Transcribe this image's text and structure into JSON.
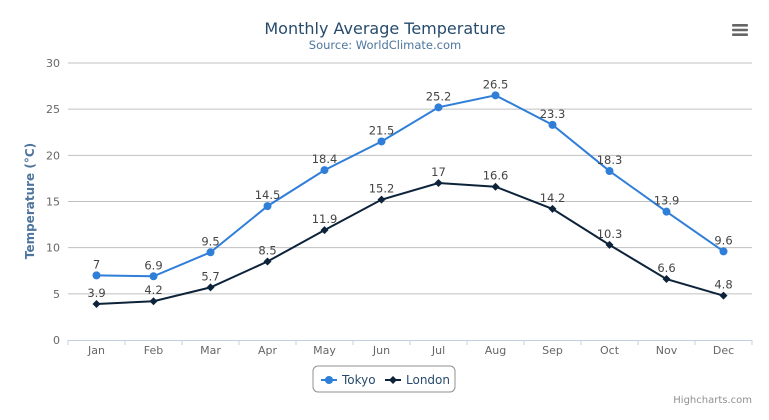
{
  "chart_data": {
    "type": "line",
    "title": "Monthly Average Temperature",
    "subtitle": "Source: WorldClimate.com",
    "ylabel": "Temperature (°C)",
    "xlabel": "",
    "categories": [
      "Jan",
      "Feb",
      "Mar",
      "Apr",
      "May",
      "Jun",
      "Jul",
      "Aug",
      "Sep",
      "Oct",
      "Nov",
      "Dec"
    ],
    "ylim": [
      0,
      30
    ],
    "yticks": [
      0,
      5,
      10,
      15,
      20,
      25,
      30
    ],
    "grid": true,
    "legend_placement": "bottom-center",
    "data_labels": true,
    "series": [
      {
        "name": "Tokyo",
        "color": "#2f7ed8",
        "marker": "circle",
        "values": [
          7.0,
          6.9,
          9.5,
          14.5,
          18.4,
          21.5,
          25.2,
          26.5,
          23.3,
          18.3,
          13.9,
          9.6
        ]
      },
      {
        "name": "London",
        "color": "#0d233a",
        "marker": "diamond",
        "values": [
          3.9,
          4.2,
          5.7,
          8.5,
          11.9,
          15.2,
          17.0,
          16.6,
          14.2,
          10.3,
          6.6,
          4.8
        ]
      }
    ]
  },
  "credits": "Highcharts.com",
  "menu_icon": "hamburger-menu-icon",
  "colors": {
    "title": "#274b6d",
    "subtitle": "#4d759e",
    "grid": "#c0c0c0",
    "axis": "#c0d0e0"
  }
}
